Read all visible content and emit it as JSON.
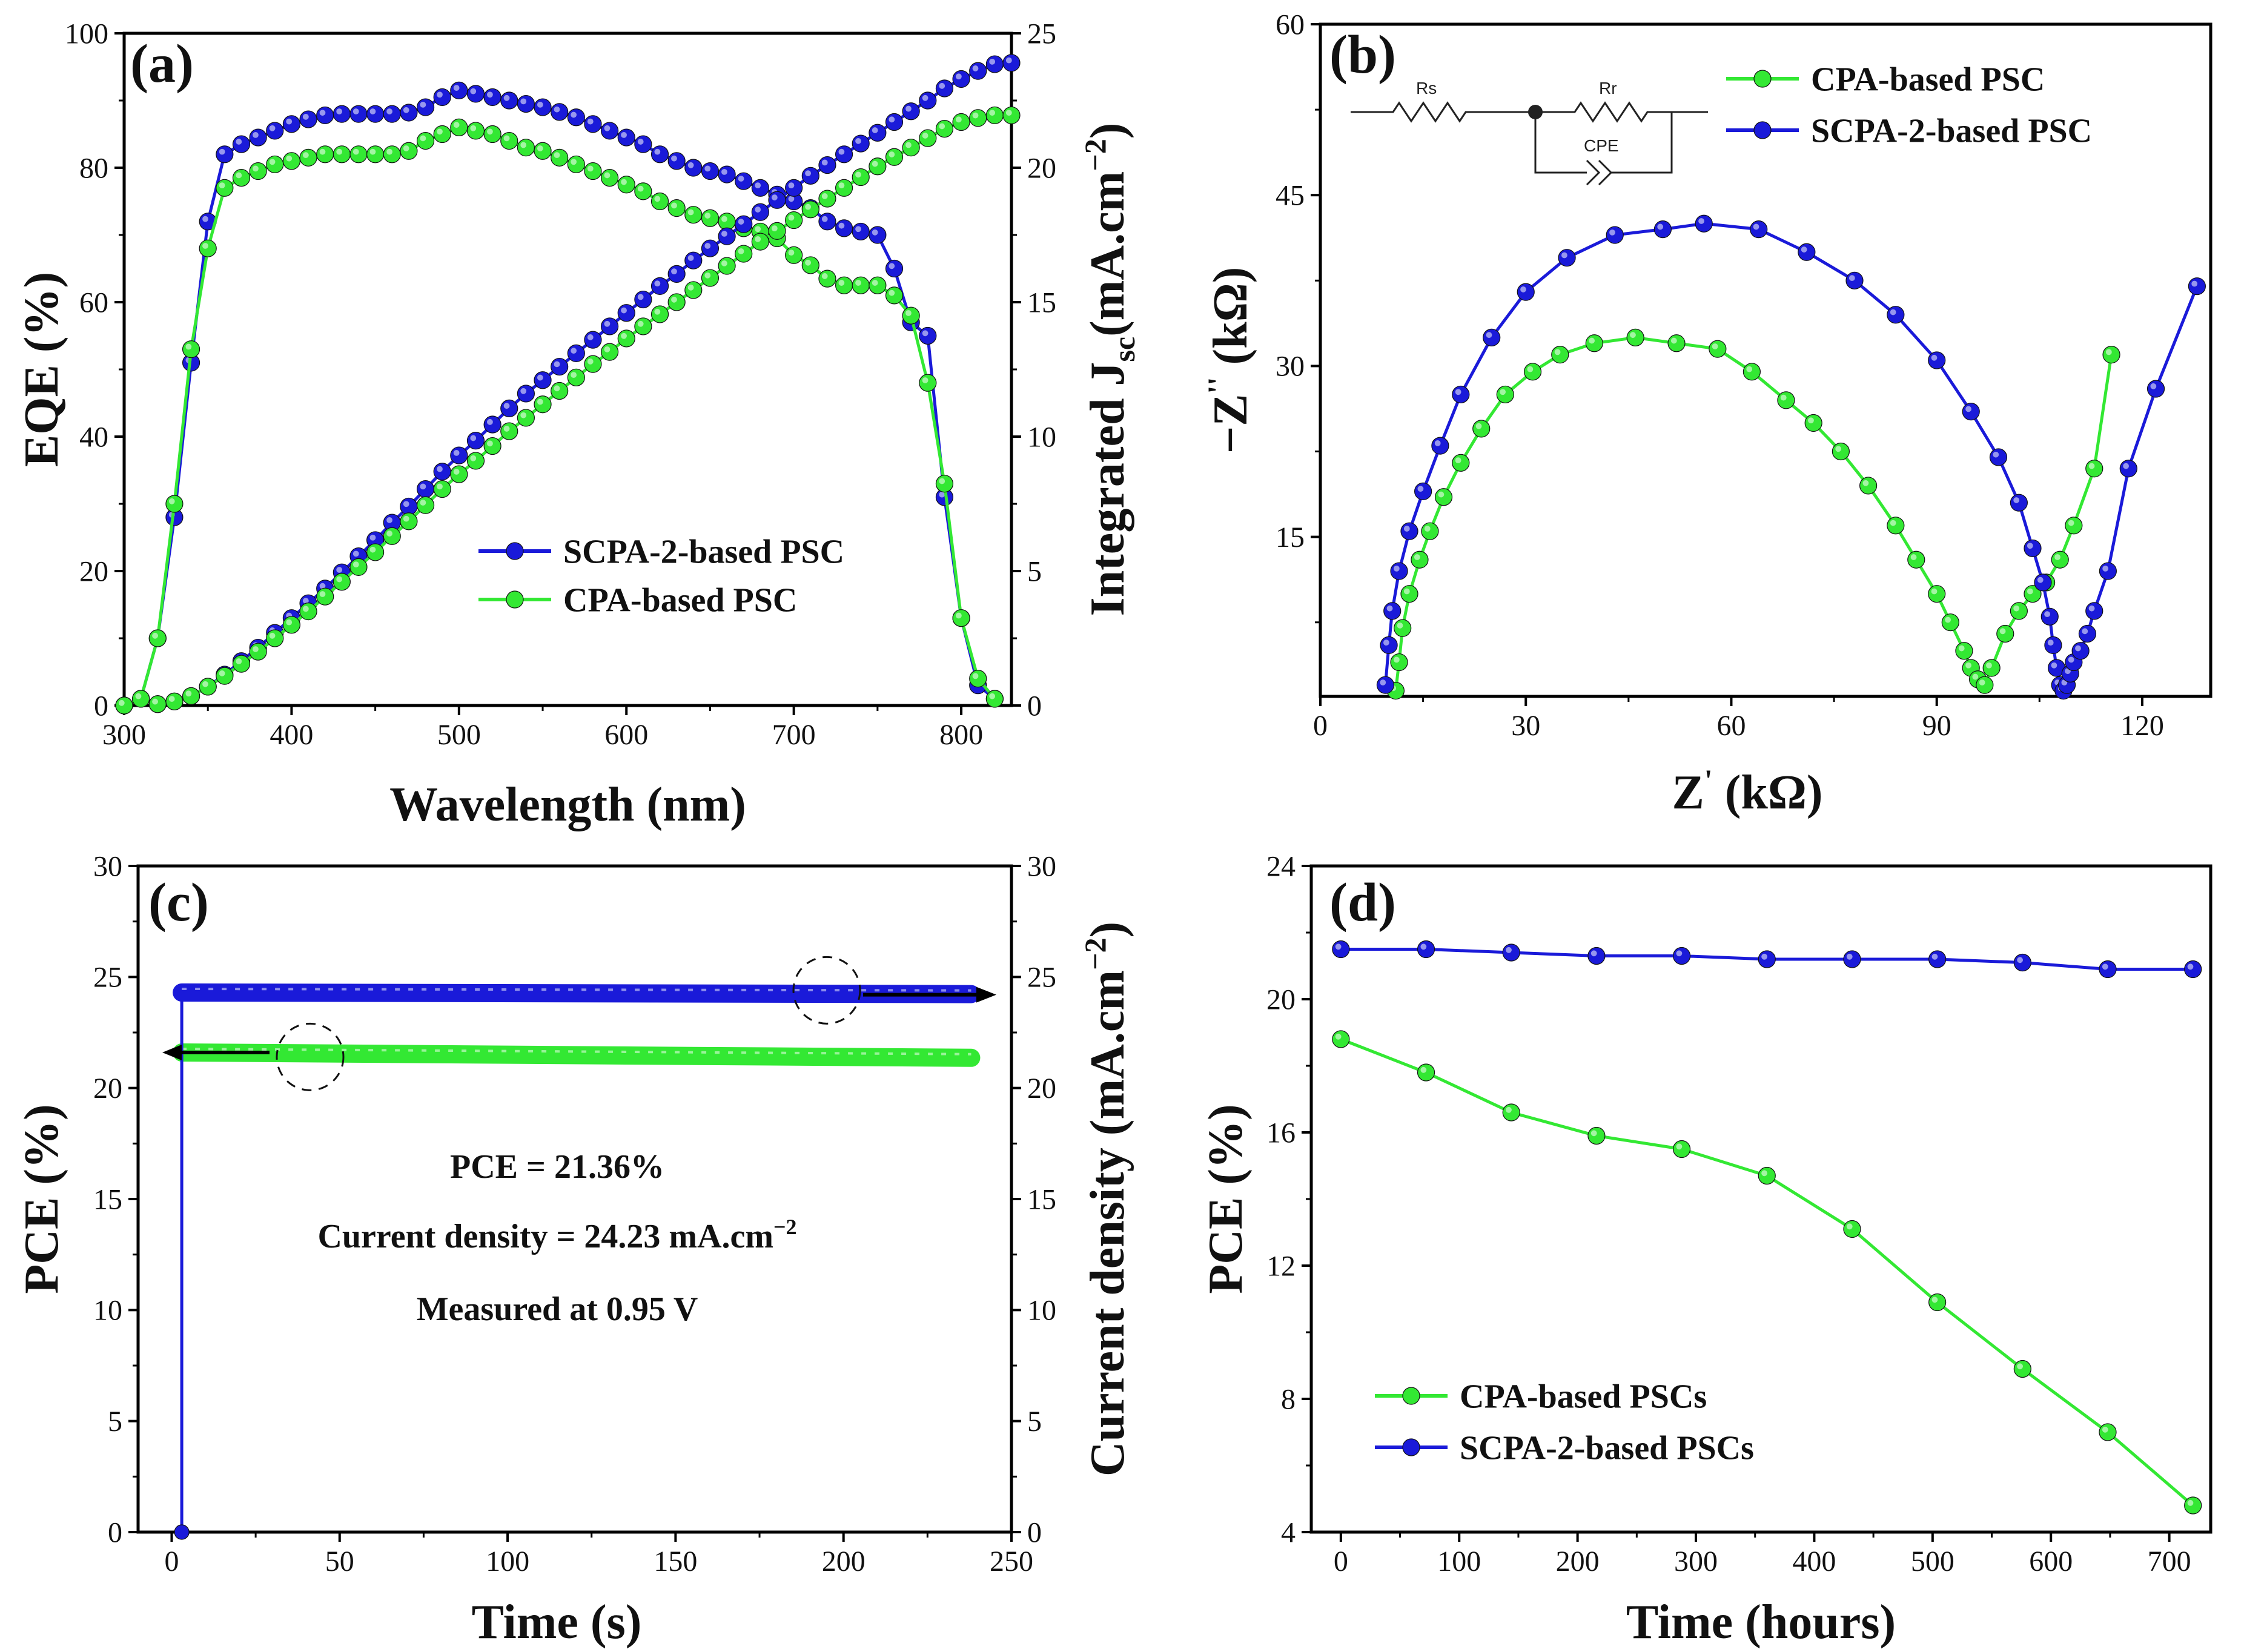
{
  "colors": {
    "green": "#33e833",
    "blue": "#1a1ad9",
    "frame": "#000000"
  },
  "chart_data": [
    {
      "panel": "(a)",
      "type": "line",
      "xlabel": "Wavelength (nm)",
      "ylabel": "EQE (%)",
      "y2label": "Integrated J",
      "y2label_sub": "sc",
      "y2label_unit": "(mA.cm",
      "y2label_sup": "−2",
      "y2label_close": ")",
      "xlim": [
        300,
        830
      ],
      "ylim": [
        0,
        100
      ],
      "y2lim": [
        0,
        25
      ],
      "xticks": [
        300,
        400,
        500,
        600,
        700,
        800
      ],
      "yticks": [
        0,
        20,
        40,
        60,
        80,
        100
      ],
      "y2ticks": [
        0,
        5,
        10,
        15,
        20,
        25
      ],
      "legend": [
        "SCPA-2-based PSC",
        "CPA-based PSC"
      ],
      "series": [
        {
          "name": "SCPA-2-based PSC",
          "axis": "left",
          "color": "blue",
          "x": [
            300,
            310,
            320,
            330,
            340,
            350,
            360,
            370,
            380,
            390,
            400,
            410,
            420,
            430,
            440,
            450,
            460,
            470,
            480,
            490,
            500,
            510,
            520,
            530,
            540,
            550,
            560,
            570,
            580,
            590,
            600,
            610,
            620,
            630,
            640,
            650,
            660,
            670,
            680,
            690,
            700,
            710,
            720,
            730,
            740,
            750,
            760,
            770,
            780,
            790,
            800,
            810,
            820
          ],
          "y": [
            0,
            1,
            10,
            28,
            51,
            72,
            82,
            83.5,
            84.5,
            85.5,
            86.5,
            87.2,
            87.8,
            88,
            88,
            88,
            88,
            88.2,
            89,
            90.5,
            91.5,
            91,
            90.5,
            90,
            89.5,
            89,
            88.3,
            87.5,
            86.5,
            85.5,
            84.5,
            83.5,
            82,
            81,
            80,
            79.5,
            79,
            78,
            77,
            76,
            75,
            74,
            72,
            71,
            70.5,
            70,
            65,
            57,
            55,
            31,
            13,
            3,
            1
          ]
        },
        {
          "name": "CPA-based PSC",
          "axis": "left",
          "color": "green",
          "x": [
            300,
            310,
            320,
            330,
            340,
            350,
            360,
            370,
            380,
            390,
            400,
            410,
            420,
            430,
            440,
            450,
            460,
            470,
            480,
            490,
            500,
            510,
            520,
            530,
            540,
            550,
            560,
            570,
            580,
            590,
            600,
            610,
            620,
            630,
            640,
            650,
            660,
            670,
            680,
            690,
            700,
            710,
            720,
            730,
            740,
            750,
            760,
            770,
            780,
            790,
            800,
            810,
            820
          ],
          "y": [
            0,
            1,
            10,
            30,
            53,
            68,
            77,
            78.5,
            79.5,
            80.5,
            81,
            81.5,
            82,
            82,
            82,
            82,
            82,
            82.5,
            84,
            85,
            86,
            85.5,
            85,
            84,
            83,
            82.5,
            81.5,
            80.5,
            79.5,
            78.5,
            77.5,
            76.5,
            75,
            74,
            73,
            72.5,
            72,
            71,
            70.5,
            69.5,
            67,
            65.5,
            63.5,
            62.5,
            62.5,
            62.5,
            61,
            58,
            48,
            33,
            13,
            4,
            1
          ]
        },
        {
          "name": "SCPA-2-based PSC",
          "axis": "right",
          "color": "blue",
          "x": [
            320,
            330,
            340,
            350,
            360,
            370,
            380,
            390,
            400,
            410,
            420,
            430,
            440,
            450,
            460,
            470,
            480,
            490,
            500,
            510,
            520,
            530,
            540,
            550,
            560,
            570,
            580,
            590,
            600,
            610,
            620,
            630,
            640,
            650,
            660,
            670,
            680,
            690,
            700,
            710,
            720,
            730,
            740,
            750,
            760,
            770,
            780,
            790,
            800,
            810,
            820,
            830
          ],
          "y": [
            0.05,
            0.15,
            0.35,
            0.7,
            1.15,
            1.65,
            2.15,
            2.7,
            3.25,
            3.8,
            4.35,
            4.95,
            5.55,
            6.15,
            6.8,
            7.4,
            8.05,
            8.7,
            9.3,
            9.85,
            10.45,
            11.05,
            11.6,
            12.1,
            12.6,
            13.1,
            13.6,
            14.1,
            14.6,
            15.1,
            15.6,
            16.05,
            16.55,
            17.0,
            17.45,
            17.9,
            18.35,
            18.8,
            19.25,
            19.7,
            20.1,
            20.5,
            20.9,
            21.3,
            21.7,
            22.1,
            22.5,
            22.95,
            23.3,
            23.6,
            23.85,
            23.9
          ]
        },
        {
          "name": "CPA-based PSC",
          "axis": "right",
          "color": "green",
          "x": [
            320,
            330,
            340,
            350,
            360,
            370,
            380,
            390,
            400,
            410,
            420,
            430,
            440,
            450,
            460,
            470,
            480,
            490,
            500,
            510,
            520,
            530,
            540,
            550,
            560,
            570,
            580,
            590,
            600,
            610,
            620,
            630,
            640,
            650,
            660,
            670,
            680,
            690,
            700,
            710,
            720,
            730,
            740,
            750,
            760,
            770,
            780,
            790,
            800,
            810,
            820,
            830
          ],
          "y": [
            0.05,
            0.15,
            0.35,
            0.7,
            1.1,
            1.55,
            2.0,
            2.5,
            3.0,
            3.5,
            4.05,
            4.6,
            5.15,
            5.7,
            6.3,
            6.85,
            7.45,
            8.05,
            8.6,
            9.1,
            9.65,
            10.2,
            10.7,
            11.2,
            11.7,
            12.2,
            12.7,
            13.15,
            13.65,
            14.1,
            14.55,
            15.0,
            15.45,
            15.9,
            16.35,
            16.8,
            17.25,
            17.65,
            18.05,
            18.45,
            18.85,
            19.25,
            19.65,
            20.05,
            20.4,
            20.75,
            21.1,
            21.45,
            21.7,
            21.85,
            21.95,
            21.95
          ]
        }
      ]
    },
    {
      "panel": "(b)",
      "type": "scatter",
      "xlabel": "Z",
      "xlabel_sup": "'",
      "xlabel_unit": " (kΩ)",
      "ylabel": "−Z",
      "ylabel_sup": "''",
      "ylabel_unit": " (kΩ)",
      "xlim": [
        0,
        130
      ],
      "ylim": [
        1,
        60
      ],
      "xticks": [
        0,
        30,
        60,
        90,
        120
      ],
      "yticks": [
        15,
        30,
        45,
        60
      ],
      "legend": [
        "CPA-based PSC",
        "SCPA-2-based PSC"
      ],
      "circuit": {
        "rs": "Rs",
        "rr": "Rr",
        "cpe": "CPE"
      },
      "series": [
        {
          "name": "CPA-based PSC",
          "color": "green",
          "x": [
            11,
            11.5,
            12,
            13,
            14.5,
            16,
            18,
            20.5,
            23.5,
            27,
            31,
            35,
            40,
            46,
            52,
            58,
            63,
            68,
            72,
            76,
            80,
            84,
            87,
            90,
            92,
            94,
            95,
            96,
            97,
            98,
            100,
            102,
            104,
            106,
            108,
            110,
            113,
            115.5
          ],
          "y": [
            1.5,
            4,
            7,
            10,
            13,
            15.5,
            18.5,
            21.5,
            24.5,
            27.5,
            29.5,
            31,
            32,
            32.5,
            32,
            31.5,
            29.5,
            27,
            25,
            22.5,
            19.5,
            16,
            13,
            10,
            7.5,
            5,
            3.5,
            2.5,
            2,
            3.5,
            6.5,
            8.5,
            10,
            11,
            13,
            16,
            21,
            31
          ]
        },
        {
          "name": "SCPA-2-based PSC",
          "color": "blue",
          "x": [
            9.5,
            10,
            10.5,
            11.5,
            13,
            15,
            17.5,
            20.5,
            25,
            30,
            36,
            43,
            50,
            56,
            64,
            71,
            78,
            84,
            90,
            95,
            99,
            102,
            104,
            105.5,
            106.5,
            107,
            107.5,
            108,
            108.5,
            109,
            109.5,
            110,
            111,
            112,
            113,
            115,
            118,
            122,
            128
          ],
          "y": [
            2,
            5.5,
            8.5,
            12,
            15.5,
            19,
            23,
            27.5,
            32.5,
            36.5,
            39.5,
            41.5,
            42,
            42.5,
            42,
            40,
            37.5,
            34.5,
            30.5,
            26,
            22,
            18,
            14,
            11,
            8,
            5.5,
            3.5,
            2,
            1.5,
            2,
            3,
            4,
            5,
            6.5,
            8.5,
            12,
            21,
            28,
            37
          ]
        }
      ]
    },
    {
      "panel": "(c)",
      "type": "line",
      "xlabel": "Time (s)",
      "ylabel": "PCE (%)",
      "y2label": "Current density (mA.cm",
      "y2label_sup": "−2",
      "y2label_close": ")",
      "xlim": [
        -10,
        250
      ],
      "ylim": [
        0,
        30
      ],
      "y2lim": [
        0,
        30
      ],
      "xticks": [
        0,
        50,
        100,
        150,
        200,
        250
      ],
      "yticks": [
        0,
        5,
        10,
        15,
        20,
        25,
        30
      ],
      "y2ticks": [
        0,
        5,
        10,
        15,
        20,
        25,
        30
      ],
      "annotations": [
        "PCE = 21.36%",
        "Current density = 24.23 mA.cm",
        "−2",
        "Measured at 0.95 V"
      ],
      "series": [
        {
          "name": "PCE",
          "axis": "left",
          "color": "green",
          "x_start": 3,
          "x_end": 238,
          "y_start": 21.6,
          "y_end": 21.36
        },
        {
          "name": "Current density",
          "axis": "right",
          "color": "blue",
          "x_start": 3,
          "x_end": 238,
          "y_start": 24.3,
          "y_end": 24.23,
          "initial_point": [
            3,
            0
          ]
        }
      ]
    },
    {
      "panel": "(d)",
      "type": "line",
      "xlabel": "Time (hours)",
      "ylabel": "PCE (%)",
      "xlim": [
        -25,
        735
      ],
      "ylim": [
        4,
        24
      ],
      "xticks": [
        0,
        100,
        200,
        300,
        400,
        500,
        600,
        700
      ],
      "yticks": [
        4,
        8,
        12,
        16,
        20,
        24
      ],
      "legend": [
        "CPA-based PSCs",
        "SCPA-2-based PSCs"
      ],
      "series": [
        {
          "name": "CPA-based PSCs",
          "color": "green",
          "x": [
            0,
            72,
            144,
            216,
            288,
            360,
            432,
            504,
            576,
            648,
            720
          ],
          "y": [
            18.8,
            17.8,
            16.6,
            15.9,
            15.5,
            14.7,
            13.1,
            10.9,
            8.9,
            7.0,
            4.8
          ]
        },
        {
          "name": "SCPA-2-based PSCs",
          "color": "blue",
          "x": [
            0,
            72,
            144,
            216,
            288,
            360,
            432,
            504,
            576,
            648,
            720
          ],
          "y": [
            21.5,
            21.5,
            21.4,
            21.3,
            21.3,
            21.2,
            21.2,
            21.2,
            21.1,
            20.9,
            20.9
          ]
        }
      ]
    }
  ]
}
